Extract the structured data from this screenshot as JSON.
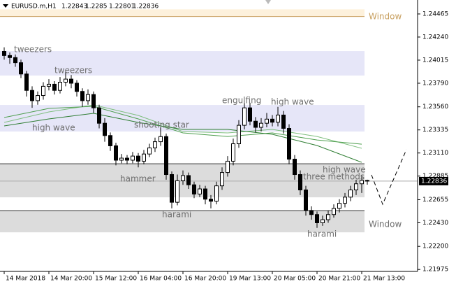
{
  "chart_data": {
    "type": "candlestick",
    "symbol": "EURUSD.m,H1",
    "x": [
      0,
      2,
      4,
      6,
      8,
      10,
      12,
      14,
      16,
      18,
      20,
      22,
      24,
      26,
      28,
      30,
      32,
      34,
      36,
      38,
      40,
      42,
      44,
      46,
      48,
      50,
      52,
      54,
      56,
      58,
      60,
      62,
      64,
      66,
      68,
      70,
      72,
      74,
      76,
      78,
      80,
      82,
      84,
      86,
      88,
      90,
      92,
      94,
      96,
      98,
      100,
      102,
      104,
      106,
      108,
      110,
      112,
      114,
      116,
      118,
      120,
      122,
      124,
      126,
      128,
      130
    ],
    "candles": [
      [
        1.241,
        1.2414,
        1.2402,
        1.2406
      ],
      [
        1.2406,
        1.2409,
        1.2398,
        1.2404
      ],
      [
        1.2404,
        1.2407,
        1.2395,
        1.2399
      ],
      [
        1.2399,
        1.2402,
        1.2384,
        1.2388
      ],
      [
        1.2388,
        1.2391,
        1.2366,
        1.2372
      ],
      [
        1.2372,
        1.2376,
        1.2355,
        1.2362
      ],
      [
        1.2362,
        1.2371,
        1.2358,
        1.2367
      ],
      [
        1.2367,
        1.238,
        1.2363,
        1.2376
      ],
      [
        1.2376,
        1.2383,
        1.2372,
        1.2378
      ],
      [
        1.2378,
        1.2381,
        1.2368,
        1.2372
      ],
      [
        1.2372,
        1.2385,
        1.2369,
        1.238
      ],
      [
        1.238,
        1.239,
        1.2376,
        1.2383
      ],
      [
        1.2383,
        1.2387,
        1.2374,
        1.2379
      ],
      [
        1.2379,
        1.2382,
        1.2366,
        1.2371
      ],
      [
        1.2371,
        1.2374,
        1.2356,
        1.2362
      ],
      [
        1.2362,
        1.2373,
        1.2358,
        1.2368
      ],
      [
        1.2368,
        1.2371,
        1.235,
        1.2355
      ],
      [
        1.2355,
        1.2358,
        1.2335,
        1.234
      ],
      [
        1.234,
        1.2345,
        1.2322,
        1.2328
      ],
      [
        1.2328,
        1.2331,
        1.2313,
        1.2318
      ],
      [
        1.2318,
        1.2321,
        1.2299,
        1.2304
      ],
      [
        1.2304,
        1.231,
        1.2301,
        1.2306
      ],
      [
        1.2306,
        1.2309,
        1.23,
        1.2304
      ],
      [
        1.2304,
        1.2312,
        1.2301,
        1.2308
      ],
      [
        1.2308,
        1.2311,
        1.2297,
        1.2303
      ],
      [
        1.2303,
        1.2314,
        1.23,
        1.231
      ],
      [
        1.231,
        1.232,
        1.2307,
        1.2316
      ],
      [
        1.2316,
        1.2326,
        1.2312,
        1.2322
      ],
      [
        1.2322,
        1.2336,
        1.2318,
        1.2327
      ],
      [
        1.2327,
        1.233,
        1.2285,
        1.229
      ],
      [
        1.229,
        1.2293,
        1.2257,
        1.2263
      ],
      [
        1.2263,
        1.229,
        1.226,
        1.2284
      ],
      [
        1.2284,
        1.2294,
        1.228,
        1.2289
      ],
      [
        1.2289,
        1.2292,
        1.2276,
        1.228
      ],
      [
        1.228,
        1.2283,
        1.2267,
        1.2271
      ],
      [
        1.2271,
        1.228,
        1.2268,
        1.2276
      ],
      [
        1.2276,
        1.2279,
        1.2261,
        1.2266
      ],
      [
        1.2266,
        1.227,
        1.2257,
        1.2264
      ],
      [
        1.2264,
        1.2283,
        1.2261,
        1.2279
      ],
      [
        1.2279,
        1.2297,
        1.2275,
        1.2292
      ],
      [
        1.2292,
        1.2308,
        1.2288,
        1.2303
      ],
      [
        1.2303,
        1.2325,
        1.2299,
        1.232
      ],
      [
        1.232,
        1.2343,
        1.2316,
        1.2338
      ],
      [
        1.2338,
        1.2362,
        1.2334,
        1.2355
      ],
      [
        1.2355,
        1.236,
        1.2338,
        1.2342
      ],
      [
        1.2342,
        1.2346,
        1.2331,
        1.2336
      ],
      [
        1.2336,
        1.2345,
        1.2332,
        1.234
      ],
      [
        1.234,
        1.235,
        1.2336,
        1.2344
      ],
      [
        1.2344,
        1.2348,
        1.2337,
        1.2341
      ],
      [
        1.2341,
        1.2356,
        1.2337,
        1.2348
      ],
      [
        1.2348,
        1.2352,
        1.233,
        1.2335
      ],
      [
        1.2335,
        1.2339,
        1.23,
        1.2305
      ],
      [
        1.2305,
        1.2309,
        1.2285,
        1.229
      ],
      [
        1.229,
        1.2294,
        1.227,
        1.2275
      ],
      [
        1.2275,
        1.2279,
        1.225,
        1.2255
      ],
      [
        1.2255,
        1.2259,
        1.2246,
        1.2251
      ],
      [
        1.2251,
        1.2254,
        1.2238,
        1.2243
      ],
      [
        1.2243,
        1.225,
        1.224,
        1.2246
      ],
      [
        1.2246,
        1.2255,
        1.2243,
        1.2251
      ],
      [
        1.2251,
        1.2261,
        1.2248,
        1.2257
      ],
      [
        1.2257,
        1.2266,
        1.2253,
        1.2262
      ],
      [
        1.2262,
        1.2272,
        1.2258,
        1.2268
      ],
      [
        1.2268,
        1.2279,
        1.2264,
        1.2275
      ],
      [
        1.2275,
        1.2285,
        1.227,
        1.2281
      ],
      [
        1.2281,
        1.2289,
        1.2272,
        1.22843
      ],
      [
        1.22843,
        1.2285,
        1.22801,
        1.22836
      ]
    ],
    "moving_averages": [
      {
        "color": "#7fbf7f",
        "x": [
          0,
          16,
          32,
          48,
          64,
          80,
          96,
          112,
          128
        ],
        "values": [
          1.23408,
          1.2351,
          1.23578,
          1.23476,
          1.23319,
          1.23306,
          1.2334,
          1.23271,
          1.23156
        ]
      },
      {
        "color": "#4f9f4f",
        "x": [
          0,
          16,
          32,
          48,
          64,
          80,
          96,
          112,
          128
        ],
        "values": [
          1.23456,
          1.23544,
          1.23565,
          1.23442,
          1.23306,
          1.23271,
          1.23306,
          1.23237,
          1.23196
        ]
      },
      {
        "color": "#2e7d32",
        "x": [
          0,
          16,
          32,
          48,
          64,
          80,
          96,
          112,
          128
        ],
        "values": [
          1.23374,
          1.23442,
          1.23497,
          1.23408,
          1.2334,
          1.2334,
          1.23292,
          1.23183,
          1.23019
        ]
      }
    ],
    "zones": [
      {
        "top": 1.2451,
        "bottom": 1.2444,
        "color": "#fdf1dc"
      },
      {
        "top": 1.24103,
        "bottom": 1.23865,
        "color": "#e6e6f8"
      },
      {
        "top": 1.23578,
        "bottom": 1.23319,
        "color": "#e6e6f8"
      },
      {
        "top": 1.23005,
        "bottom": 1.22678,
        "color": "#dcdcdc"
      },
      {
        "top": 1.22548,
        "bottom": 1.22337,
        "color": "#dcdcdc"
      }
    ],
    "annotations": [
      "Window",
      "tweezers",
      "tweezers",
      "high wave",
      "shooting star",
      "engulfing",
      "high wave",
      "hammer",
      "harami",
      "high wave",
      "three methods",
      "harami",
      "Window"
    ],
    "ylim": [
      1.21956,
      1.24601
    ],
    "xlim": [
      -1.5,
      148
    ],
    "yticks": [
      1.24465,
      {
        "value": 1.2424,
        "label": "1.24240"
      },
      {
        "value": 1.24015,
        "label": "1.24015"
      },
      {
        "value": 1.2379,
        "label": "1.23790"
      },
      {
        "value": 1.2356,
        "label": "1.23560"
      },
      1.23335,
      {
        "value": 1.2311,
        "label": "1.23110"
      },
      1.22885,
      1.22655,
      {
        "value": 1.2243,
        "label": "1.22430"
      },
      {
        "value": 1.222,
        "label": "1.22200"
      },
      1.21975
    ],
    "xticks": [
      {
        "value": 0,
        "label": "14 Mar 2018"
      },
      {
        "value": 16,
        "label": "14 Mar 20:00"
      },
      {
        "value": 32,
        "label": "15 Mar 12:00"
      },
      {
        "value": 48,
        "label": "16 Mar 04:00"
      },
      {
        "value": 64,
        "label": "16 Mar 20:00"
      },
      {
        "value": 80,
        "label": "19 Mar 13:00"
      },
      {
        "value": 96,
        "label": "20 Mar 05:00"
      },
      {
        "value": 112,
        "label": "20 Mar 21:00"
      },
      {
        "value": 128,
        "label": "21 Mar 13:00"
      }
    ]
  }
}
